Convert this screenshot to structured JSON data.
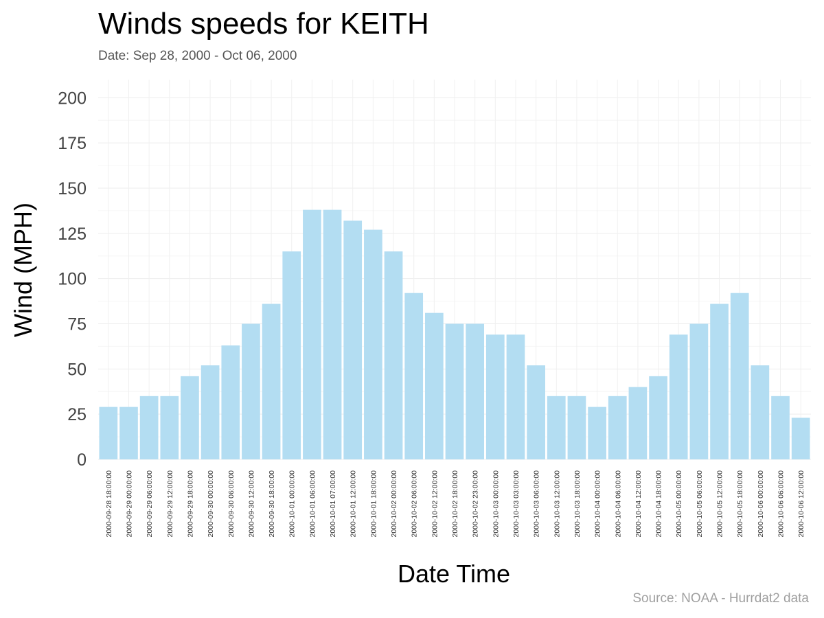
{
  "chart_data": {
    "type": "bar",
    "title": "Winds speeds for KEITH",
    "subtitle": "Date:  Sep 28, 2000 - Oct 06, 2000",
    "caption": "Source: NOAA - Hurrdat2 data",
    "xlabel": "Date Time",
    "ylabel": "Wind (MPH)",
    "ylim": [
      0,
      210
    ],
    "yticks": [
      0,
      25,
      50,
      75,
      100,
      125,
      150,
      175,
      200
    ],
    "grid": true,
    "bar_color": "#b3ddf2",
    "categories": [
      "2000-09-28 18:00:00",
      "2000-09-29 00:00:00",
      "2000-09-29 06:00:00",
      "2000-09-29 12:00:00",
      "2000-09-29 18:00:00",
      "2000-09-30 00:00:00",
      "2000-09-30 06:00:00",
      "2000-09-30 12:00:00",
      "2000-09-30 18:00:00",
      "2000-10-01 00:00:00",
      "2000-10-01 06:00:00",
      "2000-10-01 07:00:00",
      "2000-10-01 12:00:00",
      "2000-10-01 18:00:00",
      "2000-10-02 00:00:00",
      "2000-10-02 06:00:00",
      "2000-10-02 12:00:00",
      "2000-10-02 18:00:00",
      "2000-10-02 23:00:00",
      "2000-10-03 00:00:00",
      "2000-10-03 03:00:00",
      "2000-10-03 06:00:00",
      "2000-10-03 12:00:00",
      "2000-10-03 18:00:00",
      "2000-10-04 00:00:00",
      "2000-10-04 06:00:00",
      "2000-10-04 12:00:00",
      "2000-10-04 18:00:00",
      "2000-10-05 00:00:00",
      "2000-10-05 06:00:00",
      "2000-10-05 12:00:00",
      "2000-10-05 18:00:00",
      "2000-10-06 00:00:00",
      "2000-10-06 06:00:00",
      "2000-10-06 12:00:00"
    ],
    "values": [
      29,
      29,
      35,
      35,
      46,
      52,
      63,
      75,
      86,
      115,
      138,
      138,
      132,
      127,
      115,
      92,
      81,
      75,
      75,
      69,
      69,
      52,
      35,
      35,
      29,
      35,
      40,
      46,
      69,
      75,
      86,
      92,
      52,
      35,
      23
    ]
  }
}
